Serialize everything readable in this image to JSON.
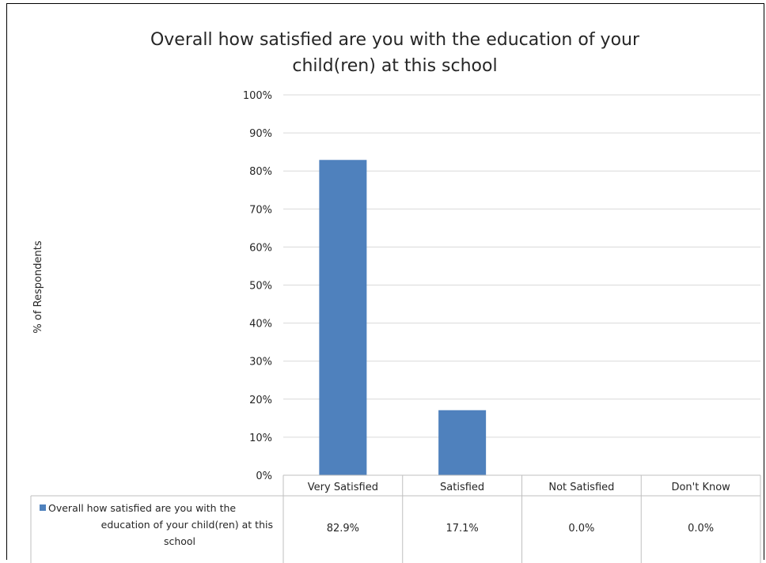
{
  "chart_data": {
    "type": "bar",
    "title": "Overall how satisfied are you with the education of your child(ren) at this school",
    "title_lines": [
      "Overall how satisfied are you with the education of your",
      "child(ren) at this school"
    ],
    "ylabel": "% of Respondents",
    "xlabel": "",
    "ylim": [
      0,
      100
    ],
    "yticks": [
      "0%",
      "10%",
      "20%",
      "30%",
      "40%",
      "50%",
      "60%",
      "70%",
      "80%",
      "90%",
      "100%"
    ],
    "categories": [
      "Very Satisfied",
      "Satisfied",
      "Not Satisfied",
      "Don't Know"
    ],
    "series": [
      {
        "name": "Overall how satisfied are you with the education of your child(ren) at this school",
        "name_lines": [
          "Overall how satisfied are you with the",
          "education of your child(ren) at this",
          "school"
        ],
        "values": [
          82.9,
          17.1,
          0.0,
          0.0
        ],
        "labels": [
          "82.9%",
          "17.1%",
          "0.0%",
          "0.0%"
        ],
        "color": "#4F81BD"
      }
    ],
    "grid": true,
    "legend": "data-table"
  }
}
